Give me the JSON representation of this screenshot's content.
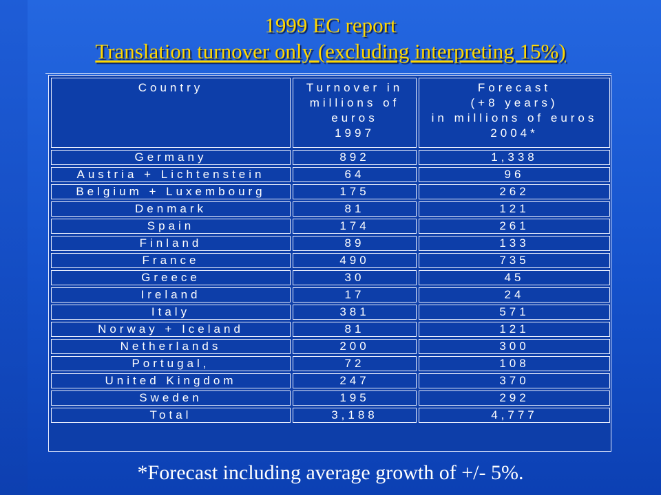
{
  "title": {
    "line1": "1999 EC report",
    "line2": "Translation turnover only (excluding interpreting 15%)"
  },
  "table": {
    "headers": {
      "country": [
        "Country"
      ],
      "turnover": [
        "Turnover in",
        "millions of",
        "euros",
        "1997"
      ],
      "forecast": [
        "Forecast",
        "(+8 years)",
        "in millions of euros",
        "2004*"
      ]
    },
    "rows": [
      {
        "country": "Germany",
        "turnover": "892",
        "forecast": "1,338"
      },
      {
        "country": "Austria + Lichtenstein",
        "turnover": "64",
        "forecast": "96"
      },
      {
        "country": "Belgium + Luxembourg",
        "turnover": "175",
        "forecast": "262"
      },
      {
        "country": "Denmark",
        "turnover": "81",
        "forecast": "121"
      },
      {
        "country": "Spain",
        "turnover": "174",
        "forecast": "261"
      },
      {
        "country": "Finland",
        "turnover": "89",
        "forecast": "133"
      },
      {
        "country": "France",
        "turnover": "490",
        "forecast": "735"
      },
      {
        "country": "Greece",
        "turnover": "30",
        "forecast": "45"
      },
      {
        "country": "Ireland",
        "turnover": "17",
        "forecast": "24"
      },
      {
        "country": "Italy",
        "turnover": "381",
        "forecast": "571"
      },
      {
        "country": "Norway + Iceland",
        "turnover": "81",
        "forecast": "121"
      },
      {
        "country": "Netherlands",
        "turnover": "200",
        "forecast": "300"
      },
      {
        "country": "Portugal,",
        "turnover": "72",
        "forecast": "108"
      },
      {
        "country": "United Kingdom",
        "turnover": "247",
        "forecast": "370"
      },
      {
        "country": "Sweden",
        "turnover": "195",
        "forecast": "292"
      },
      {
        "country": "Total",
        "turnover": "3,188",
        "forecast": "4,777"
      }
    ]
  },
  "footnote": "*Forecast including average growth of +/- 5%.",
  "colors": {
    "background": "#1552cc",
    "title": "#ffd800",
    "text": "#ffffff"
  }
}
